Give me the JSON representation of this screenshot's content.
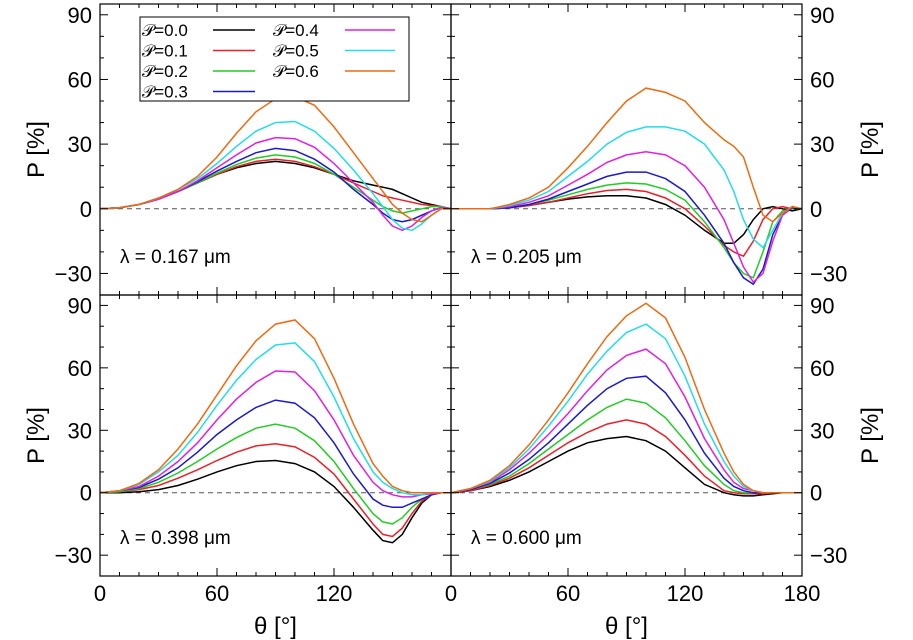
{
  "colors": {
    "0.0": "#000000",
    "0.1": "#e8202a",
    "0.2": "#22cc22",
    "0.3": "#1a1acc",
    "0.4": "#e020e0",
    "0.5": "#22dde8",
    "0.6": "#ee6a10"
  },
  "legend": {
    "placement": "top-left of first panel",
    "entries": [
      "𝒫=0.0",
      "𝒫=0.1",
      "𝒫=0.2",
      "𝒫=0.3",
      "𝒫=0.4",
      "𝒫=0.5",
      "𝒫=0.6"
    ]
  },
  "chart_data": [
    {
      "type": "line",
      "annotation": "λ = 0.167 μm",
      "xlabel": "",
      "ylabel": "P [%]",
      "xlim": [
        0,
        180
      ],
      "ylim": [
        -40,
        95
      ],
      "yticks": [
        "−30",
        "0",
        "30",
        "60",
        "90"
      ],
      "xticks": [],
      "x": [
        0,
        10,
        20,
        30,
        40,
        50,
        60,
        70,
        80,
        90,
        100,
        110,
        120,
        130,
        140,
        145,
        150,
        155,
        160,
        165,
        170,
        175,
        180
      ],
      "series": [
        {
          "name": "𝒫=0.0",
          "values": [
            0,
            0.5,
            2,
            4.5,
            8,
            12,
            16,
            19,
            21,
            22,
            21,
            19,
            16,
            13,
            11,
            10,
            9,
            7,
            5,
            3,
            2,
            1,
            0
          ]
        },
        {
          "name": "𝒫=0.1",
          "values": [
            0,
            0.5,
            2,
            4.5,
            8,
            12,
            16,
            19.5,
            22,
            23,
            22,
            19.5,
            16,
            12,
            8,
            6,
            5,
            4,
            3,
            2,
            1.5,
            1,
            0
          ]
        },
        {
          "name": "𝒫=0.2",
          "values": [
            0,
            0.5,
            2,
            4.5,
            8,
            12,
            16.5,
            20.5,
            23.5,
            25,
            24,
            21,
            16,
            10,
            4,
            1,
            -1,
            -2,
            -1,
            0,
            1,
            1,
            0
          ]
        },
        {
          "name": "𝒫=0.3",
          "values": [
            0,
            0.5,
            2,
            4.5,
            8,
            12.5,
            17.5,
            22,
            26,
            28,
            27,
            23,
            17,
            9,
            2,
            -2,
            -5,
            -6,
            -5,
            -3,
            -1,
            0.5,
            0
          ]
        },
        {
          "name": "𝒫=0.4",
          "values": [
            0,
            0.5,
            2,
            4.5,
            8,
            13,
            19,
            25,
            30.5,
            33,
            32.5,
            28.5,
            21,
            12,
            3,
            -3,
            -8,
            -10,
            -8,
            -4,
            -1,
            0.5,
            0
          ]
        },
        {
          "name": "𝒫=0.5",
          "values": [
            0,
            0.5,
            2,
            5,
            9,
            14,
            21,
            29,
            36,
            40,
            40.5,
            36,
            28,
            18,
            7,
            1,
            -5,
            -9,
            -10,
            -7,
            -3,
            0,
            0
          ]
        },
        {
          "name": "𝒫=0.6",
          "values": [
            0,
            0.5,
            2,
            5,
            9,
            15,
            24,
            35,
            45,
            51,
            52,
            48,
            38,
            26,
            14,
            8,
            2,
            -2,
            -5,
            -6,
            -3,
            0,
            0
          ]
        }
      ]
    },
    {
      "type": "line",
      "annotation": "λ = 0.205 μm",
      "xlabel": "",
      "ylabel": "P [%]",
      "xlim": [
        0,
        180
      ],
      "ylim": [
        -40,
        95
      ],
      "yticks": [
        "−30",
        "0",
        "30",
        "60",
        "90"
      ],
      "xticks": [],
      "x": [
        0,
        10,
        20,
        30,
        40,
        50,
        60,
        70,
        80,
        90,
        100,
        110,
        120,
        130,
        140,
        145,
        150,
        155,
        160,
        165,
        170,
        175,
        180
      ],
      "series": [
        {
          "name": "𝒫=0.0",
          "values": [
            0,
            0,
            0,
            0.5,
            1.5,
            3,
            4.5,
            5.5,
            6,
            6,
            5,
            2,
            -3,
            -10,
            -16,
            -16,
            -12,
            -5,
            0,
            1,
            0,
            -1,
            0
          ]
        },
        {
          "name": "𝒫=0.1",
          "values": [
            0,
            0,
            0,
            0.5,
            1.5,
            3,
            5,
            7,
            8.5,
            9,
            8,
            5,
            0,
            -8,
            -17,
            -20,
            -22,
            -15,
            -5,
            0,
            1,
            0,
            0
          ]
        },
        {
          "name": "𝒫=0.2",
          "values": [
            0,
            0,
            0,
            0.5,
            2,
            4,
            6.5,
            9,
            11,
            12,
            11.5,
            9,
            4,
            -6,
            -18,
            -25,
            -30,
            -32,
            -20,
            -6,
            -1,
            0,
            0
          ]
        },
        {
          "name": "𝒫=0.3",
          "values": [
            0,
            0,
            0,
            0.5,
            2,
            4.5,
            8,
            11.5,
            15,
            17,
            17,
            14,
            8,
            -3,
            -16,
            -25,
            -32,
            -35,
            -28,
            -12,
            -3,
            0.5,
            0
          ]
        },
        {
          "name": "𝒫=0.4",
          "values": [
            0,
            0,
            0,
            1,
            3,
            6,
            11,
            16,
            21.5,
            25,
            26.5,
            25,
            20,
            10,
            -5,
            -16,
            -27,
            -34,
            -30,
            -15,
            -3,
            1,
            0
          ]
        },
        {
          "name": "𝒫=0.5",
          "values": [
            0,
            0,
            0,
            1.5,
            4,
            8,
            15,
            22,
            30,
            35.5,
            38,
            38,
            36,
            30,
            18,
            8,
            -5,
            -14,
            -18,
            -10,
            -2,
            1,
            0
          ]
        },
        {
          "name": "𝒫=0.6",
          "values": [
            0,
            0,
            0,
            2,
            5,
            10,
            19,
            29,
            40,
            50,
            56,
            54,
            50,
            40,
            32,
            29,
            24,
            10,
            -3,
            -6,
            -2,
            1,
            0
          ]
        }
      ]
    },
    {
      "type": "line",
      "annotation": "λ = 0.398 μm",
      "xlabel": "θ [°]",
      "ylabel": "P [%]",
      "xlim": [
        0,
        180
      ],
      "ylim": [
        -40,
        95
      ],
      "yticks": [
        "−30",
        "0",
        "30",
        "60",
        "90"
      ],
      "xticks": [
        "0",
        "60",
        "120"
      ],
      "x": [
        0,
        10,
        20,
        30,
        40,
        50,
        60,
        70,
        80,
        90,
        100,
        110,
        120,
        130,
        140,
        145,
        150,
        155,
        160,
        165,
        170,
        175,
        180
      ],
      "series": [
        {
          "name": "𝒫=0.0",
          "values": [
            0,
            0,
            0.5,
            1.5,
            3.5,
            6.5,
            10,
            13,
            15,
            15.5,
            14,
            10,
            3,
            -7,
            -18,
            -23,
            -24,
            -20,
            -12,
            -5,
            -1,
            0,
            0
          ]
        },
        {
          "name": "𝒫=0.1",
          "values": [
            0,
            0.5,
            1.5,
            3.5,
            7,
            11,
            15.5,
            19.5,
            22.5,
            23.5,
            22,
            17,
            9,
            -3,
            -15,
            -20,
            -21,
            -17,
            -10,
            -4,
            -1,
            0,
            0
          ]
        },
        {
          "name": "𝒫=0.2",
          "values": [
            0,
            0.5,
            2,
            5,
            9.5,
            15,
            21,
            26.5,
            31,
            33,
            31,
            25,
            15,
            2,
            -10,
            -14,
            -15,
            -12,
            -7,
            -3,
            -1,
            0,
            0
          ]
        },
        {
          "name": "𝒫=0.3",
          "values": [
            0,
            1,
            2.5,
            6.5,
            12,
            19.5,
            28,
            35,
            41,
            44.5,
            43,
            36,
            24,
            9,
            -3,
            -6,
            -7,
            -7,
            -5,
            -3,
            -1,
            0,
            0
          ]
        },
        {
          "name": "𝒫=0.4",
          "values": [
            0,
            1,
            3,
            8,
            15,
            24,
            35,
            45,
            53,
            58.5,
            58,
            49,
            35,
            18,
            5,
            1,
            -1,
            -2,
            -2,
            -1,
            -0.5,
            0,
            0
          ]
        },
        {
          "name": "𝒫=0.5",
          "values": [
            0,
            1,
            4,
            10,
            18,
            29,
            42,
            54,
            64,
            71,
            72,
            63,
            46,
            26,
            10,
            5,
            2,
            0,
            -1,
            -1,
            0,
            0,
            0
          ]
        },
        {
          "name": "𝒫=0.6",
          "values": [
            0,
            1,
            4.5,
            11,
            21,
            33,
            47,
            61,
            73,
            81,
            83,
            74,
            55,
            33,
            14,
            8,
            3,
            1,
            0,
            0,
            0,
            0,
            0
          ]
        }
      ]
    },
    {
      "type": "line",
      "annotation": "λ = 0.600 μm",
      "xlabel": "θ [°]",
      "ylabel": "P [%]",
      "xlim": [
        0,
        180
      ],
      "ylim": [
        -40,
        95
      ],
      "yticks": [
        "−30",
        "0",
        "30",
        "60",
        "90"
      ],
      "xticks": [
        "0",
        "60",
        "120",
        "180"
      ],
      "x": [
        0,
        10,
        20,
        30,
        40,
        50,
        60,
        70,
        80,
        90,
        100,
        110,
        120,
        130,
        140,
        145,
        150,
        155,
        160,
        165,
        170,
        175,
        180
      ],
      "series": [
        {
          "name": "𝒫=0.0",
          "values": [
            0,
            1,
            3,
            6,
            10,
            15,
            20,
            24,
            26,
            27,
            25,
            20,
            12,
            4,
            0,
            -1,
            -1.5,
            -1.5,
            -1,
            -0.5,
            0,
            0,
            0
          ]
        },
        {
          "name": "𝒫=0.1",
          "values": [
            0,
            1,
            3.5,
            7,
            12,
            18,
            24,
            29,
            33,
            35,
            33,
            27,
            18,
            8,
            1,
            0,
            -0.5,
            -0.5,
            -0.5,
            0,
            0,
            0,
            0
          ]
        },
        {
          "name": "𝒫=0.2",
          "values": [
            0,
            1.5,
            4,
            8,
            14,
            21,
            28,
            35,
            41,
            45,
            43,
            36,
            25,
            13,
            4,
            1,
            0,
            0,
            0,
            0,
            0,
            0,
            0
          ]
        },
        {
          "name": "𝒫=0.3",
          "values": [
            0,
            1.5,
            4.5,
            9.5,
            16,
            24,
            33,
            42,
            50,
            55,
            56,
            48,
            35,
            19,
            7,
            3,
            1,
            0,
            0,
            0,
            0,
            0,
            0
          ]
        },
        {
          "name": "𝒫=0.4",
          "values": [
            0,
            2,
            5,
            11,
            19,
            28,
            38,
            49,
            59,
            66,
            69,
            62,
            46,
            26,
            11,
            5,
            2,
            1,
            0,
            0,
            0,
            0,
            0
          ]
        },
        {
          "name": "𝒫=0.5",
          "values": [
            0,
            2,
            5.5,
            12,
            21,
            32,
            44,
            57,
            68,
            77,
            81,
            74,
            56,
            33,
            15,
            8,
            3,
            1,
            0,
            0,
            0,
            0,
            0
          ]
        },
        {
          "name": "𝒫=0.6",
          "values": [
            0,
            2,
            6,
            13,
            23,
            35,
            48,
            62,
            75,
            85,
            91,
            84,
            65,
            40,
            19,
            10,
            4,
            1,
            0,
            0,
            0,
            0,
            0
          ]
        }
      ]
    }
  ]
}
